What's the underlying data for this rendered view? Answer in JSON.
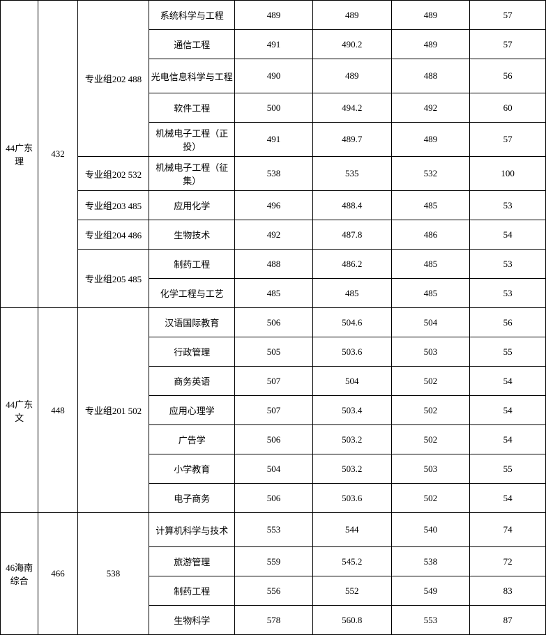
{
  "table": {
    "regions": [
      {
        "region_label": "44广东理",
        "region_code": "432",
        "groups": [
          {
            "group_label": "专业组202 488",
            "rows": [
              {
                "major": "系统科学与工程",
                "v1": "489",
                "v2": "489",
                "v3": "489",
                "v4": "57"
              },
              {
                "major": "通信工程",
                "v1": "491",
                "v2": "490.2",
                "v3": "489",
                "v4": "57"
              },
              {
                "major": "光电信息科学与工程",
                "v1": "490",
                "v2": "489",
                "v3": "488",
                "v4": "56",
                "tall": true
              },
              {
                "major": "软件工程",
                "v1": "500",
                "v2": "494.2",
                "v3": "492",
                "v4": "60"
              },
              {
                "major": "机械电子工程（正投）",
                "v1": "491",
                "v2": "489.7",
                "v3": "489",
                "v4": "57",
                "tall": true
              }
            ]
          },
          {
            "group_label": "专业组202 532",
            "rows": [
              {
                "major": "机械电子工程（征集）",
                "v1": "538",
                "v2": "535",
                "v3": "532",
                "v4": "100",
                "tall": true
              }
            ]
          },
          {
            "group_label": "专业组203 485",
            "rows": [
              {
                "major": "应用化学",
                "v1": "496",
                "v2": "488.4",
                "v3": "485",
                "v4": "53"
              }
            ]
          },
          {
            "group_label": "专业组204 486",
            "rows": [
              {
                "major": "生物技术",
                "v1": "492",
                "v2": "487.8",
                "v3": "486",
                "v4": "54"
              }
            ]
          },
          {
            "group_label": "专业组205 485",
            "rows": [
              {
                "major": "制药工程",
                "v1": "488",
                "v2": "486.2",
                "v3": "485",
                "v4": "53"
              },
              {
                "major": "化学工程与工艺",
                "v1": "485",
                "v2": "485",
                "v3": "485",
                "v4": "53"
              }
            ]
          }
        ]
      },
      {
        "region_label": "44广东文",
        "region_code": "448",
        "groups": [
          {
            "group_label": "专业组201 502",
            "rows": [
              {
                "major": "汉语国际教育",
                "v1": "506",
                "v2": "504.6",
                "v3": "504",
                "v4": "56"
              },
              {
                "major": "行政管理",
                "v1": "505",
                "v2": "503.6",
                "v3": "503",
                "v4": "55"
              },
              {
                "major": "商务英语",
                "v1": "507",
                "v2": "504",
                "v3": "502",
                "v4": "54"
              },
              {
                "major": "应用心理学",
                "v1": "507",
                "v2": "503.4",
                "v3": "502",
                "v4": "54"
              },
              {
                "major": "广告学",
                "v1": "506",
                "v2": "503.2",
                "v3": "502",
                "v4": "54"
              },
              {
                "major": "小学教育",
                "v1": "504",
                "v2": "503.2",
                "v3": "503",
                "v4": "55"
              },
              {
                "major": "电子商务",
                "v1": "506",
                "v2": "503.6",
                "v3": "502",
                "v4": "54"
              }
            ]
          }
        ]
      },
      {
        "region_label": "46海南综合",
        "region_code": "466",
        "region_extra": "538",
        "has_extra_col": true,
        "groups": [
          {
            "group_label": "",
            "rows": [
              {
                "major": "计算机科学与技术",
                "v1": "553",
                "v2": "544",
                "v3": "540",
                "v4": "74",
                "tall": true
              },
              {
                "major": "旅游管理",
                "v1": "559",
                "v2": "545.2",
                "v3": "538",
                "v4": "72"
              },
              {
                "major": "制药工程",
                "v1": "556",
                "v2": "552",
                "v3": "549",
                "v4": "83"
              },
              {
                "major": "生物科学",
                "v1": "578",
                "v2": "560.8",
                "v3": "553",
                "v4": "87"
              }
            ]
          }
        ]
      }
    ]
  }
}
